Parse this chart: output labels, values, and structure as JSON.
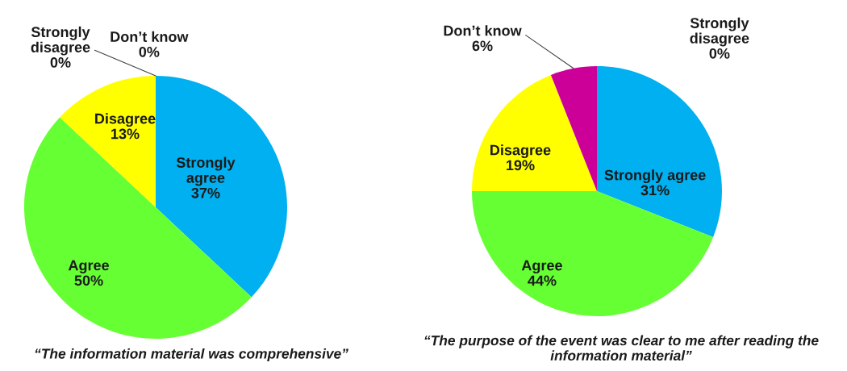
{
  "chart_data": [
    {
      "type": "pie",
      "title": "“The information material was comprehensive”",
      "categories": [
        "Strongly agree",
        "Agree",
        "Disagree",
        "Strongly disagree",
        "Don’t know"
      ],
      "values": [
        37,
        50,
        13,
        0,
        0
      ],
      "value_labels": [
        "37%",
        "50%",
        "13%",
        "0%",
        "0%"
      ],
      "colors": [
        "#00b0f0",
        "#66ff33",
        "#ffff00",
        null,
        null
      ]
    },
    {
      "type": "pie",
      "title": "“The purpose of the event was clear to me after reading the information material”",
      "categories": [
        "Strongly agree",
        "Agree",
        "Disagree",
        "Strongly disagree",
        "Don’t know"
      ],
      "values": [
        31,
        44,
        19,
        0,
        6
      ],
      "value_labels": [
        "31%",
        "44%",
        "19%",
        "0%",
        "6%"
      ],
      "colors": [
        "#00b0f0",
        "#66ff33",
        "#ffff00",
        null,
        "#cc0099"
      ]
    }
  ]
}
